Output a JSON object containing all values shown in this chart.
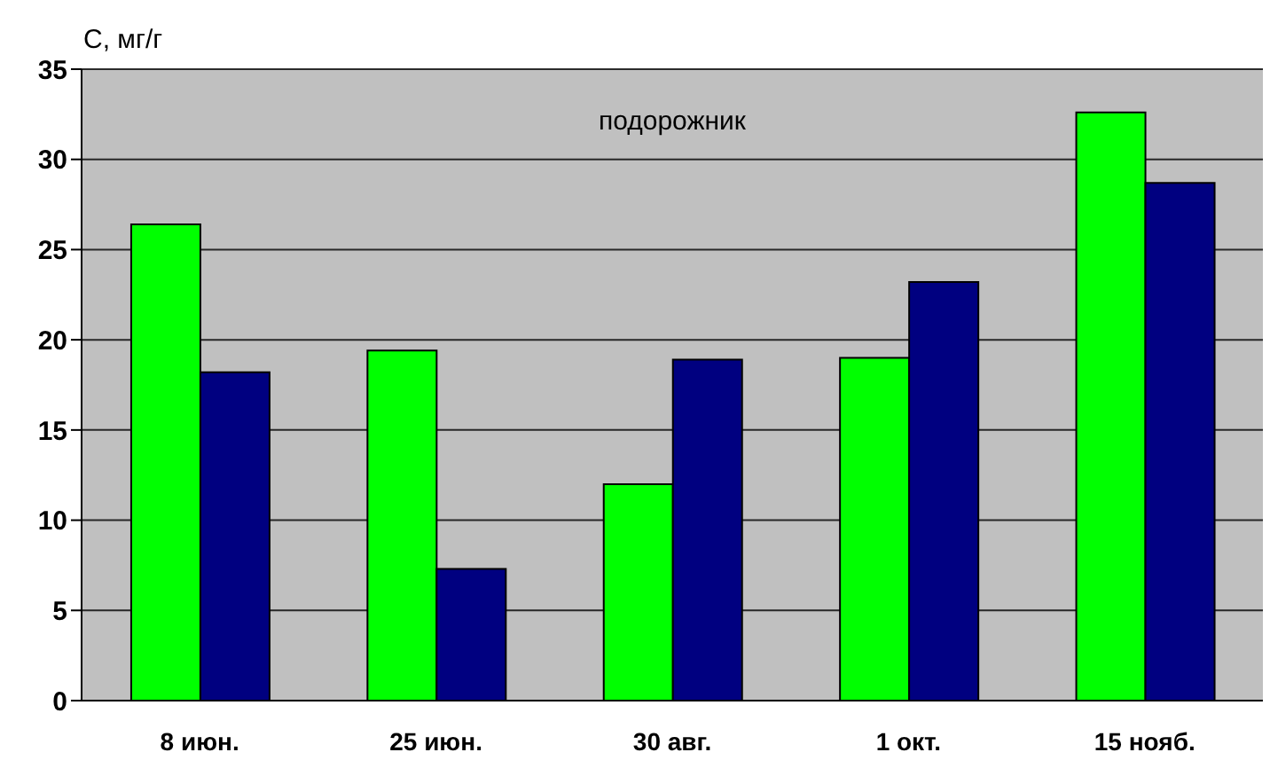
{
  "chart_data": {
    "type": "bar",
    "title": "подорожник",
    "ylabel": "С, мг/г",
    "categories": [
      "8 июн.",
      "25 июн.",
      "30 авг.",
      "1 окт.",
      "15 нояб."
    ],
    "series": [
      {
        "color": "#00ff00",
        "values": [
          26.4,
          19.4,
          12.0,
          19.0,
          32.6
        ]
      },
      {
        "color": "#000080",
        "values": [
          18.2,
          7.3,
          18.9,
          23.2,
          28.7
        ]
      }
    ],
    "ylim": [
      0,
      35
    ],
    "yticks": [
      0,
      5,
      10,
      15,
      20,
      25,
      30,
      35
    ],
    "grid": "y"
  }
}
